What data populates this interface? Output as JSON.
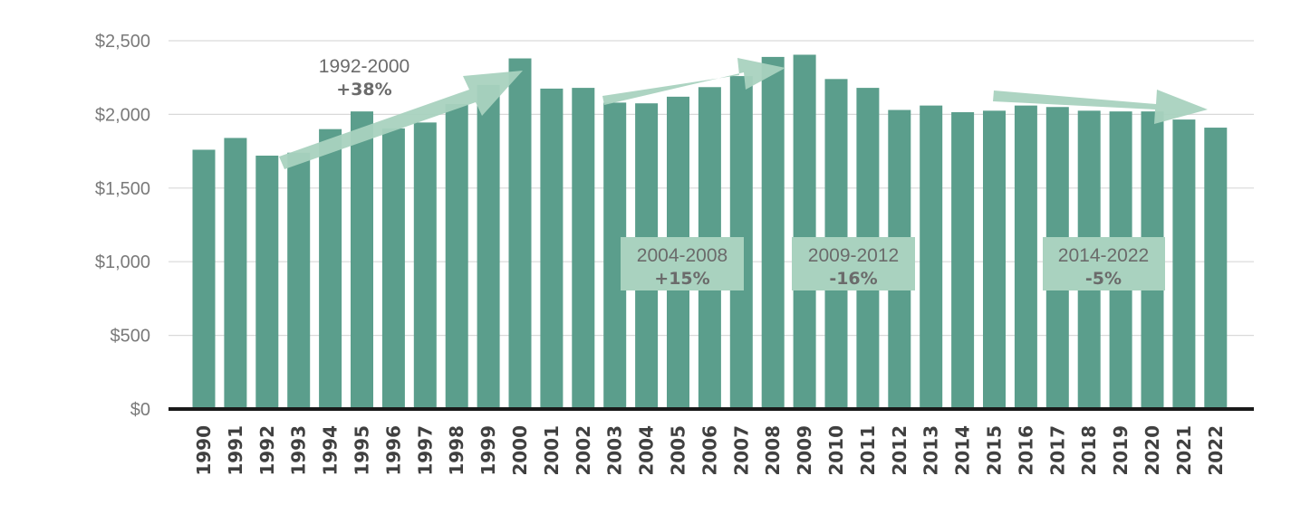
{
  "chart_data": {
    "type": "bar",
    "categories": [
      "1990",
      "1991",
      "1992",
      "1993",
      "1994",
      "1995",
      "1996",
      "1997",
      "1998",
      "1999",
      "2000",
      "2001",
      "2002",
      "2003",
      "2004",
      "2005",
      "2006",
      "2007",
      "2008",
      "2009",
      "2010",
      "2011",
      "2012",
      "2013",
      "2014",
      "2015",
      "2016",
      "2017",
      "2018",
      "2019",
      "2020",
      "2021",
      "2022"
    ],
    "values": [
      1760,
      1840,
      1720,
      1740,
      1900,
      2020,
      1905,
      1945,
      2070,
      2200,
      2380,
      2175,
      2180,
      2080,
      2075,
      2120,
      2185,
      2260,
      2390,
      2405,
      2240,
      2180,
      2030,
      2060,
      2015,
      2025,
      2060,
      2050,
      2025,
      2020,
      2020,
      1965,
      1910
    ],
    "ylim": [
      0,
      2500
    ],
    "yticks": [
      0,
      500,
      1000,
      1500,
      2000,
      2500
    ],
    "ytick_labels": [
      "$0",
      "$500",
      "$1,000",
      "$1,500",
      "$2,000",
      "$2,500"
    ],
    "grid": true,
    "bar_color": "#5b9e8c",
    "annotations": [
      {
        "range": "1992-2000",
        "change": "+38%",
        "style": "plain"
      },
      {
        "range": "2004-2008",
        "change": "+15%",
        "style": "box"
      },
      {
        "range": "2009-2012",
        "change": "-16%",
        "style": "box"
      },
      {
        "range": "2014-2022",
        "change": "-5%",
        "style": "box"
      }
    ],
    "arrow_color": "#a9d2bf"
  }
}
